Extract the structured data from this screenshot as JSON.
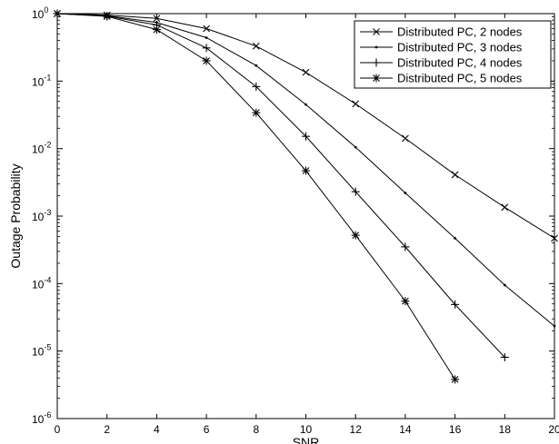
{
  "chart_data": {
    "type": "line",
    "xlabel": "SNR",
    "ylabel": "Outage Probability",
    "xlim": [
      0,
      20
    ],
    "ylim": [
      1e-06,
      1
    ],
    "yscale": "log",
    "grid": false,
    "legend_position": "top-right",
    "x_ticks": [
      "0",
      "2",
      "4",
      "6",
      "8",
      "10",
      "12",
      "14",
      "16",
      "18",
      "20"
    ],
    "y_ticks": [
      {
        "base": "10",
        "exp": "0"
      },
      {
        "base": "10",
        "exp": "-1"
      },
      {
        "base": "10",
        "exp": "-2"
      },
      {
        "base": "10",
        "exp": "-3"
      },
      {
        "base": "10",
        "exp": "-4"
      },
      {
        "base": "10",
        "exp": "-5"
      },
      {
        "base": "10",
        "exp": "-6"
      }
    ],
    "series": [
      {
        "name": "Distributed PC, 2 nodes",
        "marker": "x",
        "x": [
          0,
          2,
          4,
          6,
          8,
          10,
          12,
          14,
          16,
          18,
          20
        ],
        "y": [
          1.0,
          0.95,
          0.85,
          0.6,
          0.33,
          0.135,
          0.046,
          0.0142,
          0.0041,
          0.00135,
          0.00047
        ]
      },
      {
        "name": "Distributed PC, 3 nodes",
        "marker": "dot",
        "x": [
          0,
          2,
          4,
          6,
          8,
          10,
          12,
          14,
          16,
          18,
          20
        ],
        "y": [
          1.0,
          0.93,
          0.74,
          0.44,
          0.17,
          0.045,
          0.0105,
          0.0022,
          0.00047,
          9.5e-05,
          2.35e-05
        ]
      },
      {
        "name": "Distributed PC, 4 nodes",
        "marker": "plus",
        "x": [
          0,
          2,
          4,
          6,
          8,
          10,
          12,
          14,
          16,
          18
        ],
        "y": [
          1.0,
          0.92,
          0.68,
          0.31,
          0.083,
          0.0152,
          0.0023,
          0.00035,
          4.9e-05,
          8.1e-06
        ]
      },
      {
        "name": "Distributed PC, 5 nodes",
        "marker": "star",
        "x": [
          0,
          2,
          4,
          6,
          8,
          10,
          12,
          14,
          16
        ],
        "y": [
          1.0,
          0.91,
          0.58,
          0.2,
          0.034,
          0.0047,
          0.00052,
          5.5e-05,
          3.8e-06
        ]
      }
    ]
  }
}
